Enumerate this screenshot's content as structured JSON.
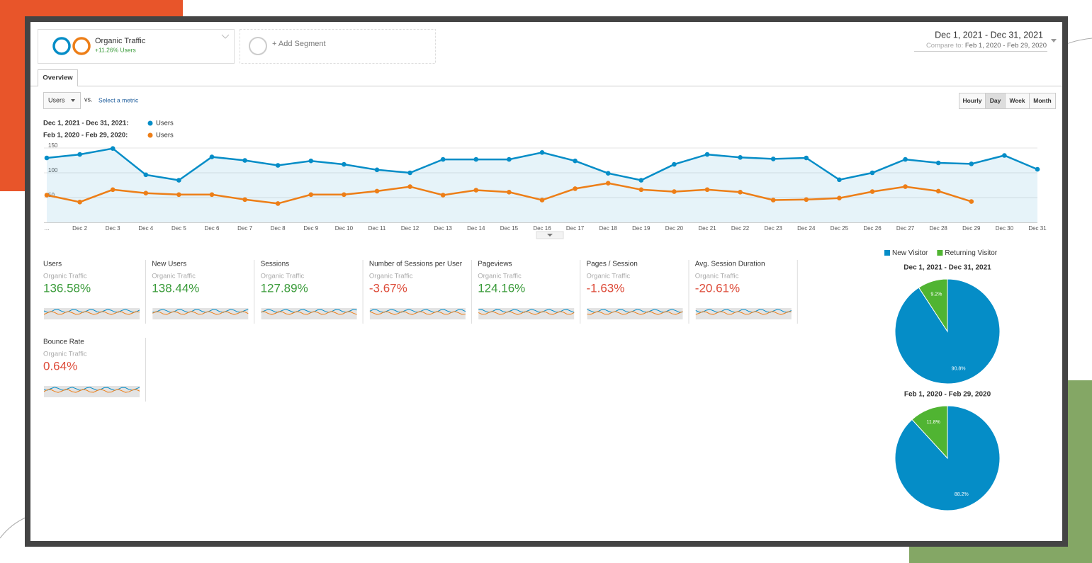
{
  "segments": [
    {
      "name": "Organic Traffic",
      "detail": "+11.26% Users"
    }
  ],
  "add_segment": "+ Add Segment",
  "date_range": {
    "current": "Dec 1, 2021 - Dec 31, 2021",
    "compare_label": "Compare to:",
    "compare": "Feb 1, 2020 - Feb 29, 2020"
  },
  "tabs": [
    "Overview"
  ],
  "metric_picker": {
    "metric": "Users",
    "vs": "vs.",
    "secondary": "Select a metric"
  },
  "granularity": {
    "options": [
      "Hourly",
      "Day",
      "Week",
      "Month"
    ],
    "active": "Day"
  },
  "metrics": [
    {
      "name": "Users",
      "segment": "Organic Traffic",
      "change": "136.58%",
      "color": "#3a9b3a"
    },
    {
      "name": "New Users",
      "segment": "Organic Traffic",
      "change": "138.44%",
      "color": "#3a9b3a"
    },
    {
      "name": "Sessions",
      "segment": "Organic Traffic",
      "change": "127.89%",
      "color": "#3a9b3a"
    },
    {
      "name": "Number of Sessions per User",
      "segment": "Organic Traffic",
      "change": "-3.67%",
      "color": "#dd4b39"
    },
    {
      "name": "Pageviews",
      "segment": "Organic Traffic",
      "change": "124.16%",
      "color": "#3a9b3a"
    },
    {
      "name": "Pages / Session",
      "segment": "Organic Traffic",
      "change": "-1.63%",
      "color": "#dd4b39"
    },
    {
      "name": "Avg. Session Duration",
      "segment": "Organic Traffic",
      "change": "-20.61%",
      "color": "#dd4b39"
    },
    {
      "name": "Bounce Rate",
      "segment": "Organic Traffic",
      "change": "0.64%",
      "color": "#dd4b39"
    }
  ],
  "chart_data": [
    {
      "type": "line",
      "categories": [
        "...",
        "Dec 2",
        "Dec 3",
        "Dec 4",
        "Dec 5",
        "Dec 6",
        "Dec 7",
        "Dec 8",
        "Dec 9",
        "Dec 10",
        "Dec 11",
        "Dec 12",
        "Dec 13",
        "Dec 14",
        "Dec 15",
        "Dec 16",
        "Dec 17",
        "Dec 18",
        "Dec 19",
        "Dec 20",
        "Dec 21",
        "Dec 22",
        "Dec 23",
        "Dec 24",
        "Dec 25",
        "Dec 26",
        "Dec 27",
        "Dec 28",
        "Dec 29",
        "Dec 30",
        "Dec 31"
      ],
      "series": [
        {
          "period": "Dec 1, 2021 - Dec 31, 2021:",
          "name": "Users",
          "color": "#058dc7",
          "area": true,
          "values": [
            130,
            137,
            149,
            96,
            85,
            132,
            125,
            115,
            124,
            117,
            106,
            100,
            127,
            127,
            127,
            141,
            124,
            99,
            85,
            117,
            137,
            131,
            128,
            130,
            86,
            100,
            127,
            120,
            118,
            135,
            107
          ]
        },
        {
          "period": "Feb 1, 2020 - Feb 29, 2020:",
          "name": "Users",
          "color": "#ed7e17",
          "area": false,
          "values": [
            55,
            41,
            66,
            59,
            56,
            56,
            46,
            38,
            56,
            56,
            63,
            72,
            55,
            65,
            61,
            45,
            68,
            79,
            66,
            62,
            66,
            61,
            45,
            46,
            49,
            62,
            72,
            63,
            42,
            null,
            null
          ]
        }
      ],
      "ylim": [
        0,
        170
      ],
      "yticks": [
        50,
        100,
        150
      ],
      "grid": true
    },
    {
      "type": "pie",
      "title": "Dec 1, 2021 - Dec 31, 2021",
      "categories": [
        "New Visitor",
        "Returning Visitor"
      ],
      "colors": [
        "#058dc7",
        "#50b432"
      ],
      "values": [
        90.8,
        9.2
      ],
      "value_labels": [
        "90.8%",
        "9.2%"
      ]
    },
    {
      "type": "pie",
      "title": "Feb 1, 2020 - Feb 29, 2020",
      "colors": [
        "#058dc7",
        "#50b432"
      ],
      "values": [
        88.2,
        11.8
      ],
      "value_labels": [
        "88.2%",
        "11.8%"
      ]
    }
  ]
}
